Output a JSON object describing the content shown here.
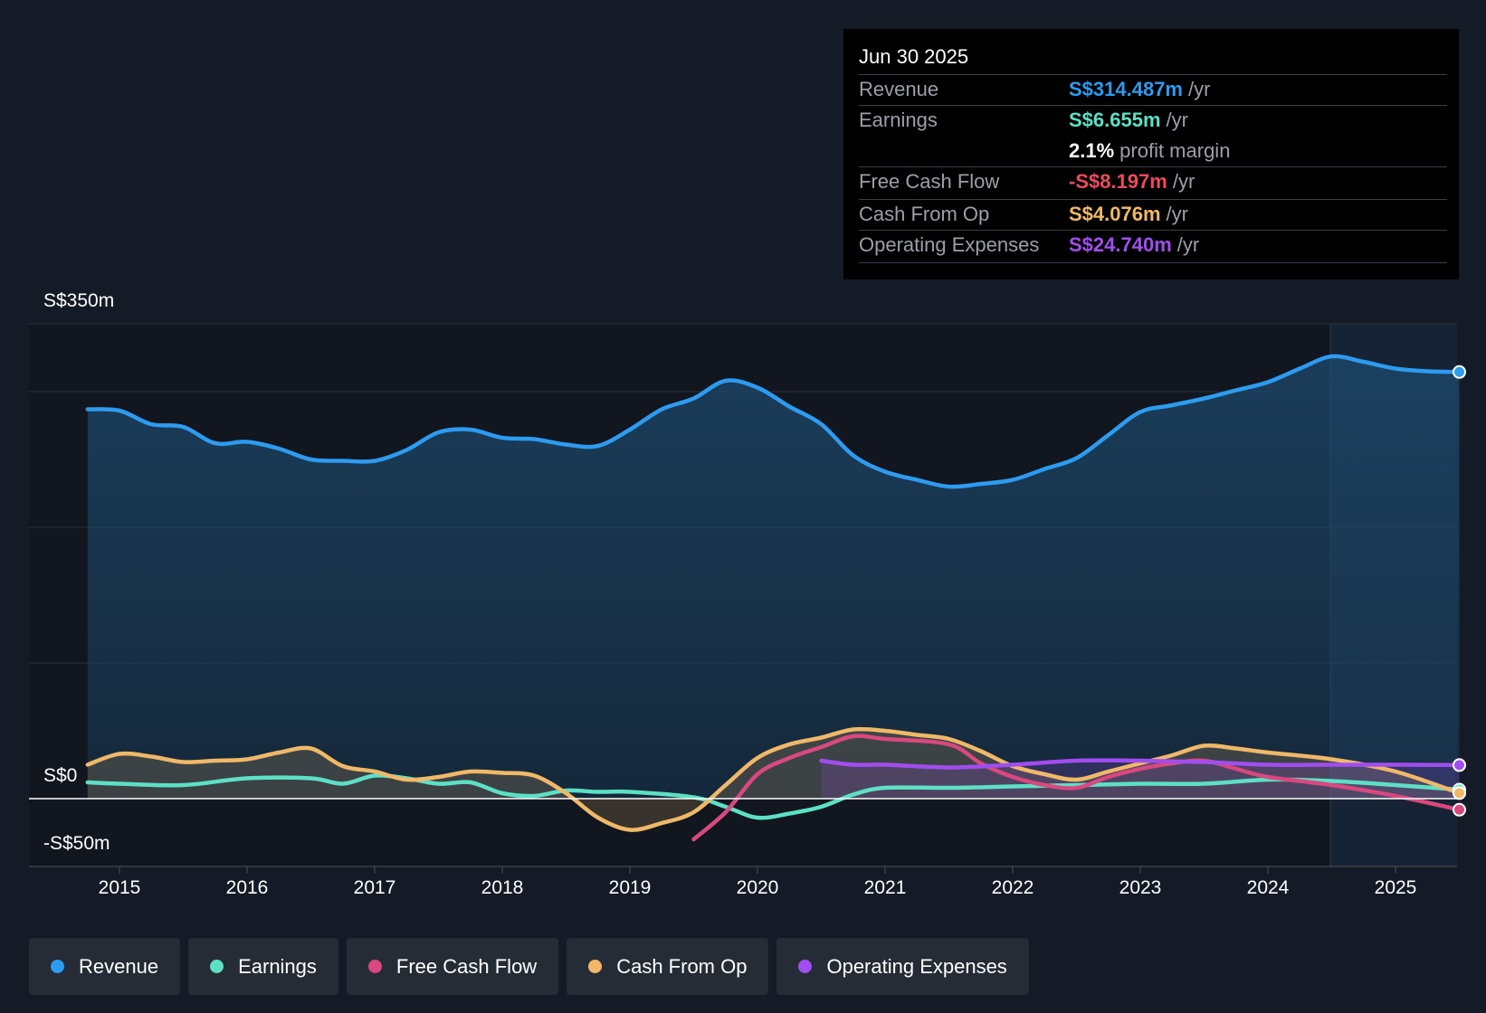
{
  "tooltip": {
    "date": "Jun 30 2025",
    "rows": [
      {
        "label": "Revenue",
        "value": "S$314.487m",
        "unit": "/yr",
        "color": "#2d9bf0"
      },
      {
        "label": "Earnings",
        "value": "S$6.655m",
        "unit": "/yr",
        "color": "#5de0c5"
      },
      {
        "label": "",
        "value": "2.1%",
        "unit": "profit margin",
        "color": "#ffffff"
      },
      {
        "label": "Free Cash Flow",
        "value": "-S$8.197m",
        "unit": "/yr",
        "color": "#ec4a5e"
      },
      {
        "label": "Cash From Op",
        "value": "S$4.076m",
        "unit": "/yr",
        "color": "#f0b868"
      },
      {
        "label": "Operating Expenses",
        "value": "S$24.740m",
        "unit": "/yr",
        "color": "#a24df0"
      }
    ]
  },
  "axis": {
    "y_top_label": "S$350m",
    "y_zero_label": "S$0",
    "y_bottom_label": "-S$50m"
  },
  "legend": [
    {
      "label": "Revenue",
      "color": "#2d9bf0"
    },
    {
      "label": "Earnings",
      "color": "#5de0c5"
    },
    {
      "label": "Free Cash Flow",
      "color": "#d9487f"
    },
    {
      "label": "Cash From Op",
      "color": "#f0b868"
    },
    {
      "label": "Operating Expenses",
      "color": "#a24df0"
    }
  ],
  "chart_data": {
    "type": "line",
    "ylim": [
      -50,
      350
    ],
    "x_ticks": [
      "2015",
      "2016",
      "2017",
      "2018",
      "2019",
      "2020",
      "2021",
      "2022",
      "2023",
      "2024",
      "2025"
    ],
    "highlight_from": 2024.5,
    "series": [
      {
        "name": "Revenue",
        "color": "#2d9bf0",
        "fill": true,
        "points": [
          [
            2014.75,
            287
          ],
          [
            2015.0,
            286
          ],
          [
            2015.25,
            276
          ],
          [
            2015.5,
            274
          ],
          [
            2015.75,
            262
          ],
          [
            2016.0,
            263
          ],
          [
            2016.25,
            258
          ],
          [
            2016.5,
            250
          ],
          [
            2016.75,
            249
          ],
          [
            2017.0,
            249
          ],
          [
            2017.25,
            257
          ],
          [
            2017.5,
            270
          ],
          [
            2017.75,
            272
          ],
          [
            2018.0,
            266
          ],
          [
            2018.25,
            265
          ],
          [
            2018.5,
            261
          ],
          [
            2018.75,
            260
          ],
          [
            2019.0,
            272
          ],
          [
            2019.25,
            287
          ],
          [
            2019.5,
            295
          ],
          [
            2019.75,
            308
          ],
          [
            2020.0,
            303
          ],
          [
            2020.25,
            289
          ],
          [
            2020.5,
            276
          ],
          [
            2020.75,
            253
          ],
          [
            2021.0,
            241
          ],
          [
            2021.25,
            235
          ],
          [
            2021.5,
            230
          ],
          [
            2021.75,
            232
          ],
          [
            2022.0,
            235
          ],
          [
            2022.25,
            243
          ],
          [
            2022.5,
            251
          ],
          [
            2022.75,
            268
          ],
          [
            2023.0,
            285
          ],
          [
            2023.25,
            290
          ],
          [
            2023.5,
            295
          ],
          [
            2023.75,
            301
          ],
          [
            2024.0,
            307
          ],
          [
            2024.25,
            317
          ],
          [
            2024.5,
            326
          ],
          [
            2024.75,
            322
          ],
          [
            2025.0,
            317
          ],
          [
            2025.25,
            315
          ],
          [
            2025.5,
            314.487
          ]
        ]
      },
      {
        "name": "Earnings",
        "color": "#5de0c5",
        "fill": false,
        "points": [
          [
            2014.75,
            12
          ],
          [
            2015.0,
            11
          ],
          [
            2015.5,
            10
          ],
          [
            2016.0,
            15
          ],
          [
            2016.5,
            15
          ],
          [
            2016.75,
            11
          ],
          [
            2017.0,
            17
          ],
          [
            2017.25,
            15
          ],
          [
            2017.5,
            11
          ],
          [
            2017.75,
            12
          ],
          [
            2018.0,
            4
          ],
          [
            2018.25,
            2
          ],
          [
            2018.5,
            6
          ],
          [
            2018.75,
            5
          ],
          [
            2019.0,
            5
          ],
          [
            2019.5,
            1
          ],
          [
            2019.75,
            -6
          ],
          [
            2020.0,
            -14
          ],
          [
            2020.25,
            -11
          ],
          [
            2020.5,
            -6
          ],
          [
            2020.75,
            3
          ],
          [
            2021.0,
            8
          ],
          [
            2021.5,
            8
          ],
          [
            2022.0,
            9
          ],
          [
            2022.5,
            10
          ],
          [
            2023.0,
            11
          ],
          [
            2023.5,
            11
          ],
          [
            2024.0,
            14
          ],
          [
            2024.5,
            13
          ],
          [
            2025.0,
            10
          ],
          [
            2025.5,
            6.655
          ]
        ]
      },
      {
        "name": "Free Cash Flow",
        "color": "#d9487f",
        "fill": false,
        "points": [
          [
            2019.5,
            -30
          ],
          [
            2019.75,
            -10
          ],
          [
            2020.0,
            18
          ],
          [
            2020.25,
            30
          ],
          [
            2020.5,
            38
          ],
          [
            2020.75,
            46
          ],
          [
            2021.0,
            44
          ],
          [
            2021.5,
            40
          ],
          [
            2021.75,
            26
          ],
          [
            2022.0,
            16
          ],
          [
            2022.25,
            10
          ],
          [
            2022.5,
            8
          ],
          [
            2022.75,
            16
          ],
          [
            2023.0,
            22
          ],
          [
            2023.25,
            26
          ],
          [
            2023.5,
            28
          ],
          [
            2023.75,
            22
          ],
          [
            2024.0,
            16
          ],
          [
            2024.5,
            10
          ],
          [
            2025.0,
            2
          ],
          [
            2025.5,
            -8.197
          ]
        ]
      },
      {
        "name": "Cash From Op",
        "color": "#f0b868",
        "fill": true,
        "points": [
          [
            2014.75,
            25
          ],
          [
            2015.0,
            33
          ],
          [
            2015.25,
            31
          ],
          [
            2015.5,
            27
          ],
          [
            2015.75,
            28
          ],
          [
            2016.0,
            29
          ],
          [
            2016.25,
            34
          ],
          [
            2016.5,
            37
          ],
          [
            2016.75,
            24
          ],
          [
            2017.0,
            20
          ],
          [
            2017.25,
            14
          ],
          [
            2017.5,
            16
          ],
          [
            2017.75,
            20
          ],
          [
            2018.0,
            19
          ],
          [
            2018.25,
            17
          ],
          [
            2018.5,
            4
          ],
          [
            2018.75,
            -14
          ],
          [
            2019.0,
            -23
          ],
          [
            2019.25,
            -18
          ],
          [
            2019.5,
            -10
          ],
          [
            2019.75,
            10
          ],
          [
            2020.0,
            30
          ],
          [
            2020.25,
            40
          ],
          [
            2020.5,
            45
          ],
          [
            2020.75,
            51
          ],
          [
            2021.0,
            50
          ],
          [
            2021.25,
            47
          ],
          [
            2021.5,
            44
          ],
          [
            2021.75,
            35
          ],
          [
            2022.0,
            24
          ],
          [
            2022.25,
            18
          ],
          [
            2022.5,
            14
          ],
          [
            2022.75,
            20
          ],
          [
            2023.0,
            26
          ],
          [
            2023.25,
            32
          ],
          [
            2023.5,
            39
          ],
          [
            2023.75,
            37
          ],
          [
            2024.0,
            34
          ],
          [
            2024.5,
            29
          ],
          [
            2025.0,
            20
          ],
          [
            2025.5,
            4.076
          ]
        ]
      },
      {
        "name": "Operating Expenses",
        "color": "#a24df0",
        "fill": true,
        "points": [
          [
            2020.5,
            28
          ],
          [
            2020.75,
            25
          ],
          [
            2021.0,
            25
          ],
          [
            2021.5,
            23
          ],
          [
            2022.0,
            25
          ],
          [
            2022.5,
            28
          ],
          [
            2023.0,
            28
          ],
          [
            2023.5,
            27
          ],
          [
            2024.0,
            25
          ],
          [
            2024.5,
            25
          ],
          [
            2025.0,
            25
          ],
          [
            2025.5,
            24.74
          ]
        ]
      }
    ]
  }
}
